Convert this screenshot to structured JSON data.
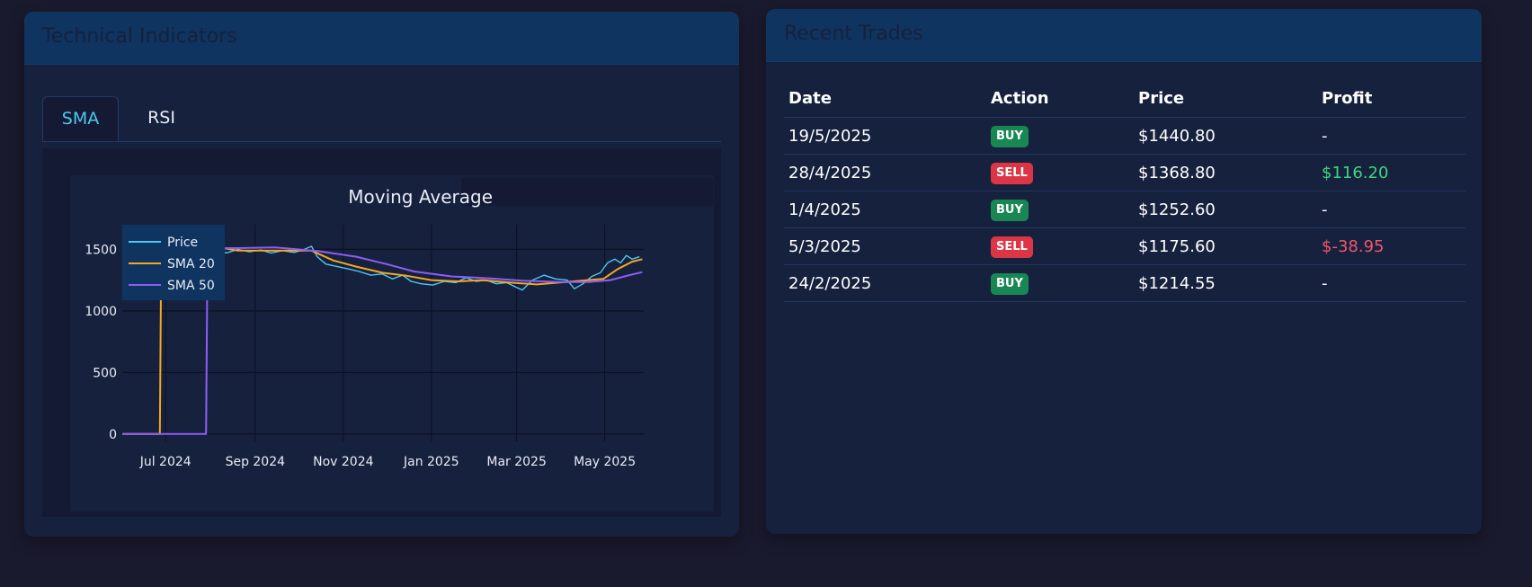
{
  "indicators_card": {
    "title": "Technical Indicators",
    "tabs": [
      {
        "label": "SMA",
        "active": true
      },
      {
        "label": "RSI",
        "active": false
      }
    ]
  },
  "trades_card": {
    "title": "Recent Trades",
    "columns": [
      "Date",
      "Action",
      "Price",
      "Profit"
    ],
    "rows": [
      {
        "date": "19/5/2025",
        "action": "BUY",
        "price": "$1440.80",
        "profit": "-"
      },
      {
        "date": "28/4/2025",
        "action": "SELL",
        "price": "$1368.80",
        "profit": "$116.20"
      },
      {
        "date": "1/4/2025",
        "action": "BUY",
        "price": "$1252.60",
        "profit": "-"
      },
      {
        "date": "5/3/2025",
        "action": "SELL",
        "price": "$1175.60",
        "profit": "$-38.95"
      },
      {
        "date": "24/2/2025",
        "action": "BUY",
        "price": "$1214.55",
        "profit": "-"
      }
    ]
  },
  "colors": {
    "background": "#1a1a2e",
    "card": "#16213e",
    "header": "#0f3460",
    "accent": "#4cc9f0",
    "buy": "#198754",
    "sell": "#dc3545",
    "profit_positive": "#3dd67f",
    "profit_negative": "#f0566a"
  },
  "chart_data": {
    "type": "line",
    "title": "Moving Average",
    "xlabel": "",
    "ylabel": "",
    "x_ticks": [
      "Jul 2024",
      "Sep 2024",
      "Nov 2024",
      "Jan 2025",
      "Mar 2025",
      "May 2025"
    ],
    "y_ticks": [
      0,
      500,
      1000,
      1500
    ],
    "ylim": [
      -60,
      1700
    ],
    "xlim": [
      "2024-06-01",
      "2025-05-28"
    ],
    "legend_position": "top-left",
    "series": [
      {
        "name": "Price",
        "color": "#4cc9f0",
        "points": [
          [
            "2024-06-01",
            0
          ],
          [
            "2024-06-20",
            0
          ],
          [
            "2024-07-10",
            0
          ],
          [
            "2024-07-29",
            0
          ],
          [
            "2024-07-30",
            1490
          ],
          [
            "2024-08-05",
            1515
          ],
          [
            "2024-08-12",
            1470
          ],
          [
            "2024-08-20",
            1500
          ],
          [
            "2024-08-28",
            1480
          ],
          [
            "2024-09-05",
            1495
          ],
          [
            "2024-09-12",
            1470
          ],
          [
            "2024-09-20",
            1490
          ],
          [
            "2024-09-28",
            1475
          ],
          [
            "2024-10-05",
            1500
          ],
          [
            "2024-10-10",
            1525
          ],
          [
            "2024-10-14",
            1440
          ],
          [
            "2024-10-20",
            1380
          ],
          [
            "2024-10-28",
            1360
          ],
          [
            "2024-11-05",
            1340
          ],
          [
            "2024-11-12",
            1320
          ],
          [
            "2024-11-20",
            1290
          ],
          [
            "2024-11-28",
            1300
          ],
          [
            "2024-12-05",
            1260
          ],
          [
            "2024-12-12",
            1290
          ],
          [
            "2024-12-18",
            1240
          ],
          [
            "2024-12-25",
            1220
          ],
          [
            "2025-01-02",
            1210
          ],
          [
            "2025-01-10",
            1240
          ],
          [
            "2025-01-18",
            1230
          ],
          [
            "2025-01-25",
            1270
          ],
          [
            "2025-02-01",
            1240
          ],
          [
            "2025-02-08",
            1250
          ],
          [
            "2025-02-15",
            1220
          ],
          [
            "2025-02-22",
            1230
          ],
          [
            "2025-03-01",
            1190
          ],
          [
            "2025-03-05",
            1170
          ],
          [
            "2025-03-12",
            1250
          ],
          [
            "2025-03-20",
            1290
          ],
          [
            "2025-03-28",
            1260
          ],
          [
            "2025-04-05",
            1250
          ],
          [
            "2025-04-10",
            1180
          ],
          [
            "2025-04-16",
            1220
          ],
          [
            "2025-04-22",
            1280
          ],
          [
            "2025-04-28",
            1310
          ],
          [
            "2025-05-03",
            1390
          ],
          [
            "2025-05-08",
            1420
          ],
          [
            "2025-05-12",
            1390
          ],
          [
            "2025-05-16",
            1450
          ],
          [
            "2025-05-20",
            1420
          ],
          [
            "2025-05-25",
            1440
          ]
        ]
      },
      {
        "name": "SMA 20",
        "color": "#f5a623",
        "points": [
          [
            "2024-06-01",
            0
          ],
          [
            "2024-06-27",
            0
          ],
          [
            "2024-06-28",
            1550
          ],
          [
            "2024-07-20",
            1580
          ],
          [
            "2024-08-05",
            1520
          ],
          [
            "2024-08-20",
            1490
          ],
          [
            "2024-09-15",
            1490
          ],
          [
            "2024-10-10",
            1490
          ],
          [
            "2024-10-25",
            1410
          ],
          [
            "2024-11-10",
            1360
          ],
          [
            "2024-11-28",
            1310
          ],
          [
            "2024-12-15",
            1285
          ],
          [
            "2025-01-01",
            1250
          ],
          [
            "2025-01-20",
            1240
          ],
          [
            "2025-02-05",
            1250
          ],
          [
            "2025-02-25",
            1230
          ],
          [
            "2025-03-15",
            1215
          ],
          [
            "2025-03-30",
            1230
          ],
          [
            "2025-04-15",
            1245
          ],
          [
            "2025-04-30",
            1260
          ],
          [
            "2025-05-10",
            1340
          ],
          [
            "2025-05-20",
            1400
          ],
          [
            "2025-05-27",
            1420
          ]
        ]
      },
      {
        "name": "SMA 50",
        "color": "#8f5cf7",
        "points": [
          [
            "2024-06-01",
            0
          ],
          [
            "2024-07-29",
            0
          ],
          [
            "2024-07-30",
            1510
          ],
          [
            "2024-08-20",
            1510
          ],
          [
            "2024-09-15",
            1515
          ],
          [
            "2024-10-15",
            1485
          ],
          [
            "2024-11-10",
            1440
          ],
          [
            "2024-12-01",
            1380
          ],
          [
            "2024-12-20",
            1320
          ],
          [
            "2025-01-15",
            1280
          ],
          [
            "2025-02-10",
            1265
          ],
          [
            "2025-03-05",
            1245
          ],
          [
            "2025-04-01",
            1235
          ],
          [
            "2025-04-20",
            1235
          ],
          [
            "2025-05-05",
            1250
          ],
          [
            "2025-05-18",
            1290
          ],
          [
            "2025-05-27",
            1315
          ]
        ]
      }
    ]
  }
}
